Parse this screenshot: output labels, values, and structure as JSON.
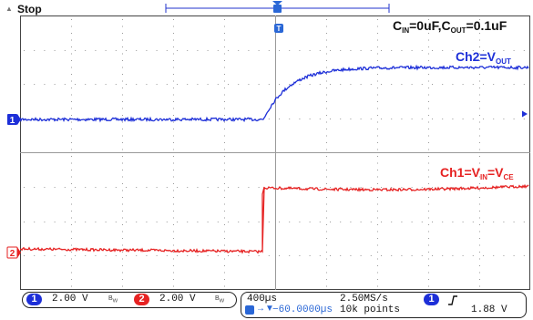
{
  "status": {
    "label": "Stop"
  },
  "trigger": {
    "marker": "T"
  },
  "channels": [
    {
      "id": "1",
      "color": "#1d2fd8",
      "scale": "2.00 V"
    },
    {
      "id": "2",
      "color": "#e62222",
      "scale": "2.00 V"
    }
  ],
  "annotations": {
    "condition": {
      "c": "C",
      "in": "IN",
      "eq1": "=0uF,",
      "cout": "C",
      "out": "OUT",
      "eq2": "=0.1uF"
    },
    "ch2_label": {
      "pre": "Ch2=V",
      "sub": "OUT"
    },
    "ch1_label": {
      "pre": "Ch1=V",
      "sub1": "IN",
      "mid": "=V",
      "sub2": "CE"
    }
  },
  "timebase": {
    "scale": "400µs",
    "sample_rate": "2.50MS/s",
    "trigger_offset": "−60.0000µs",
    "record_length": "10k points"
  },
  "trigger_info": {
    "source": "1",
    "slope_icon": "rising-edge",
    "level": "1.88 V"
  },
  "colors": {
    "ch1": "#1d2fd8",
    "ch2": "#e62222",
    "grid": "#9a9a9a",
    "frame": "#444444"
  }
}
